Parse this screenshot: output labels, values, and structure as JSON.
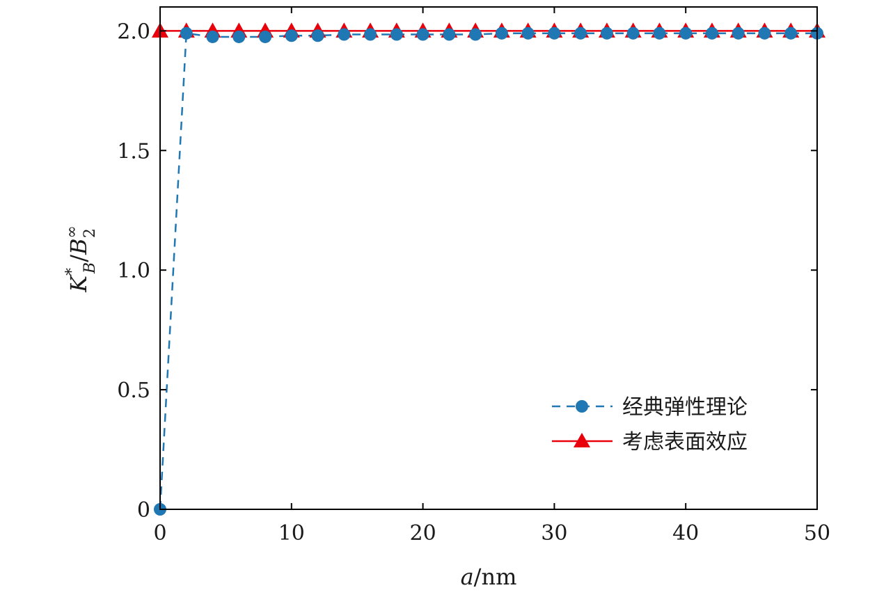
{
  "chart_data": {
    "type": "line",
    "title": "",
    "xlabel": "a/nm",
    "ylabel": "K*_B/B∞_2",
    "xlim": [
      0,
      50
    ],
    "ylim": [
      0,
      2.1
    ],
    "x_ticks": [
      0,
      10,
      20,
      30,
      40,
      50
    ],
    "x_tick_labels": [
      "0",
      "10",
      "20",
      "30",
      "40",
      "50"
    ],
    "y_ticks": [
      0,
      0.5,
      1.0,
      1.5,
      2.0
    ],
    "y_tick_labels": [
      "0",
      "0.5",
      "1.0",
      "1.5",
      "2.0"
    ],
    "grid": false,
    "legend_position": "lower-right",
    "x": [
      0,
      2,
      4,
      6,
      8,
      10,
      12,
      14,
      16,
      18,
      20,
      22,
      24,
      26,
      28,
      30,
      32,
      34,
      36,
      38,
      40,
      42,
      44,
      46,
      48,
      50
    ],
    "series": [
      {
        "name": "经典弹性理论",
        "color": "#1f77b4",
        "line_style": "dashed",
        "marker": "circle",
        "values": [
          0,
          1.99,
          1.975,
          1.975,
          1.975,
          1.98,
          1.98,
          1.985,
          1.985,
          1.985,
          1.985,
          1.985,
          1.985,
          1.99,
          1.99,
          1.99,
          1.99,
          1.99,
          1.99,
          1.99,
          1.99,
          1.99,
          1.99,
          1.99,
          1.99,
          1.99
        ]
      },
      {
        "name": "考虑表面效应",
        "color": "#e8000b",
        "line_style": "solid",
        "marker": "triangle",
        "values": [
          2.0,
          2.0,
          2.0,
          2.0,
          2.0,
          2.0,
          2.0,
          2.0,
          2.0,
          2.0,
          2.0,
          2.0,
          2.0,
          2.0,
          2.0,
          2.0,
          2.0,
          2.0,
          2.0,
          2.0,
          2.0,
          2.0,
          2.0,
          2.0,
          2.0,
          2.0
        ]
      }
    ]
  }
}
